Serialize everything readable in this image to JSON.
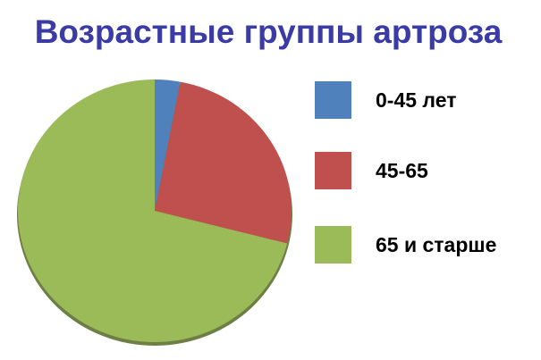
{
  "chart_data": {
    "type": "pie",
    "title": "Возрастные группы артроза",
    "categories": [
      "0-45 лет",
      "45-65",
      "65 и старше"
    ],
    "values": [
      3,
      26,
      71
    ],
    "colors": [
      "#4f81bd",
      "#c0504d",
      "#9bbb59"
    ],
    "legend": "right"
  }
}
